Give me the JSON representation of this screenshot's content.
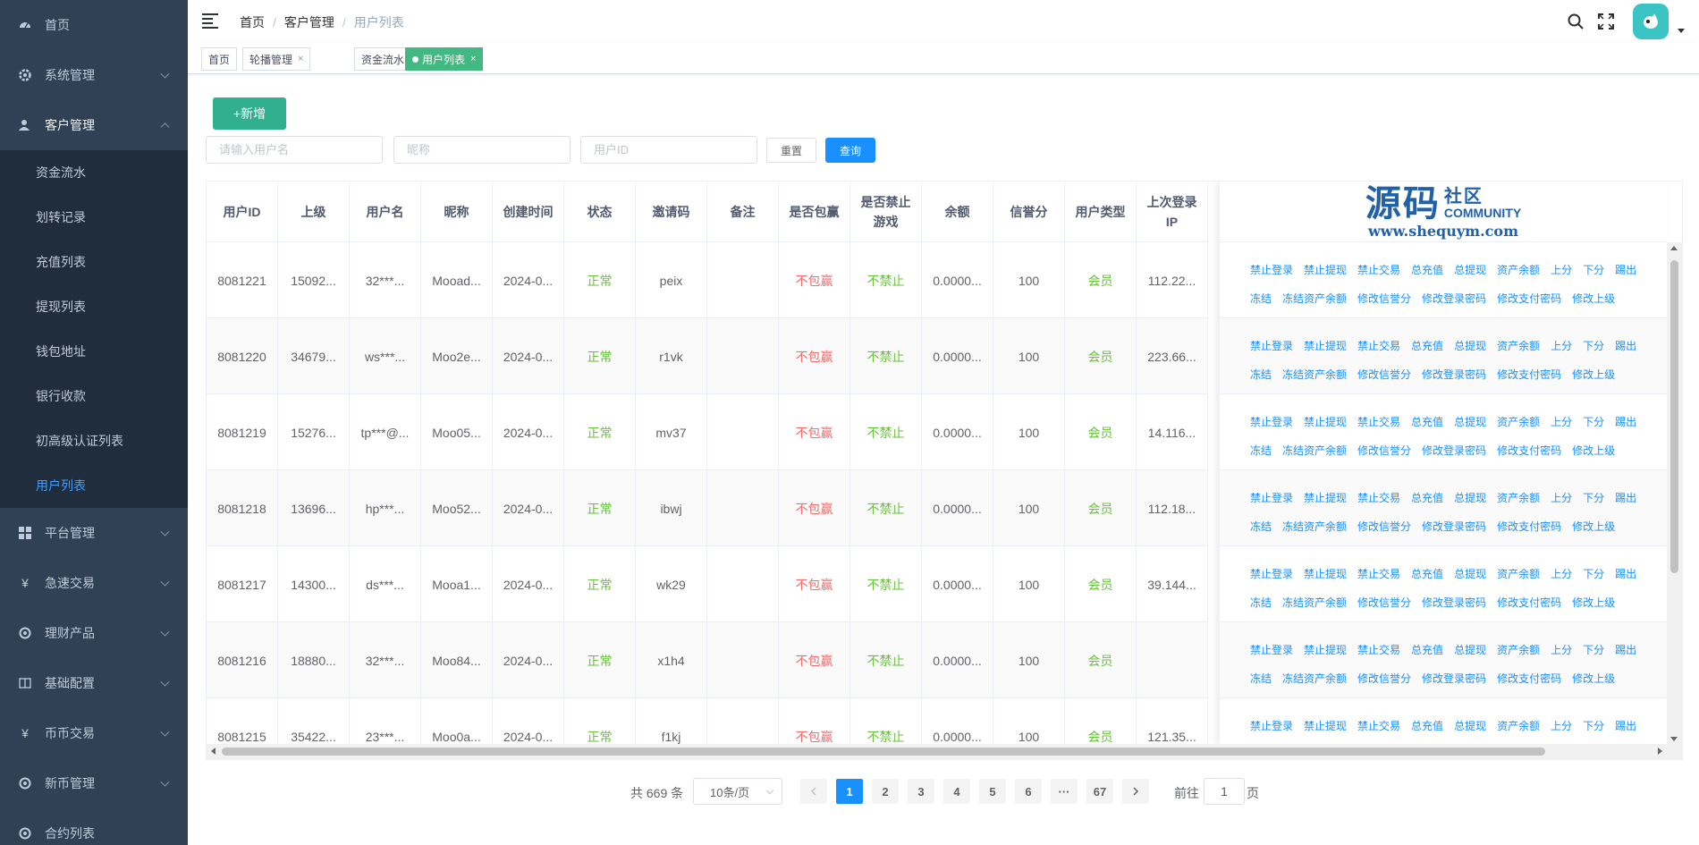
{
  "sidebar": {
    "items": [
      {
        "label": "首页",
        "icon": "dashboard-icon"
      },
      {
        "label": "系统管理",
        "icon": "gear-icon"
      },
      {
        "label": "客户管理",
        "icon": "user-icon"
      }
    ],
    "sub_items": [
      "资金流水",
      "划转记录",
      "充值列表",
      "提现列表",
      "钱包地址",
      "银行收款",
      "初高级认证列表",
      "用户列表"
    ],
    "items_after": [
      {
        "label": "平台管理",
        "icon": "grid-icon"
      },
      {
        "label": "急速交易",
        "icon": "yen-icon"
      },
      {
        "label": "理财产品",
        "icon": "target-icon"
      },
      {
        "label": "基础配置",
        "icon": "book-icon"
      },
      {
        "label": "币币交易",
        "icon": "yen-icon"
      },
      {
        "label": "新币管理",
        "icon": "target-icon"
      },
      {
        "label": "合约列表",
        "icon": "target-icon"
      }
    ]
  },
  "breadcrumb": [
    "首页",
    "客户管理",
    "用户列表"
  ],
  "tags": [
    {
      "label": "首页",
      "closable": false
    },
    {
      "label": "轮播管理",
      "closable": true
    },
    {
      "label": "资金流水",
      "closable": true
    },
    {
      "label": "用户列表",
      "closable": true,
      "active": true
    }
  ],
  "toolbar": {
    "add_label": "+新增",
    "username_placeholder": "请输入用户名",
    "nickname_placeholder": "昵称",
    "userid_placeholder": "用户ID",
    "reset_label": "重置",
    "search_label": "查询"
  },
  "table": {
    "headers": [
      "用户ID",
      "上级",
      "用户名",
      "昵称",
      "创建时间",
      "状态",
      "邀请码",
      "备注",
      "是否包赢",
      "是否禁止游戏",
      "余额",
      "信誉分",
      "用户类型",
      "上次登录IP"
    ],
    "rows": [
      [
        "8081221",
        "15092...",
        "32***...",
        "Mooad...",
        "2024-0...",
        "正常",
        "peix",
        "",
        "不包赢",
        "不禁止",
        "0.0000...",
        "100",
        "会员",
        "112.22..."
      ],
      [
        "8081220",
        "34679...",
        "ws***...",
        "Moo2e...",
        "2024-0...",
        "正常",
        "r1vk",
        "",
        "不包赢",
        "不禁止",
        "0.0000...",
        "100",
        "会员",
        "223.66..."
      ],
      [
        "8081219",
        "15276...",
        "tp***@...",
        "Moo05...",
        "2024-0...",
        "正常",
        "mv37",
        "",
        "不包赢",
        "不禁止",
        "0.0000...",
        "100",
        "会员",
        "14.116..."
      ],
      [
        "8081218",
        "13696...",
        "hp***...",
        "Moo52...",
        "2024-0...",
        "正常",
        "ibwj",
        "",
        "不包赢",
        "不禁止",
        "0.0000...",
        "100",
        "会员",
        "112.18..."
      ],
      [
        "8081217",
        "14300...",
        "ds***...",
        "Mooa1...",
        "2024-0...",
        "正常",
        "wk29",
        "",
        "不包赢",
        "不禁止",
        "0.0000...",
        "100",
        "会员",
        "39.144..."
      ],
      [
        "8081216",
        "18880...",
        "32***...",
        "Moo84...",
        "2024-0...",
        "正常",
        "x1h4",
        "",
        "不包赢",
        "不禁止",
        "0.0000...",
        "100",
        "会员",
        ""
      ],
      [
        "8081215",
        "35422...",
        "23***...",
        "Moo0a...",
        "2024-0...",
        "正常",
        "f1kj",
        "",
        "不包赢",
        "不禁止",
        "0.0000...",
        "100",
        "会员",
        "121.35..."
      ]
    ],
    "ops_line1": [
      "禁止登录",
      "禁止提现",
      "禁止交易",
      "总充值",
      "总提现",
      "资产余额",
      "上分",
      "下分",
      "踢出"
    ],
    "ops_line2": [
      "冻结",
      "冻结资产余额",
      "修改信誉分",
      "修改登录密码",
      "修改支付密码",
      "修改上级"
    ]
  },
  "watermark": {
    "big": "源码",
    "small": "社区",
    "eng": "COMMUNITY",
    "url": "www.shequym.com"
  },
  "pagination": {
    "total": "共 669 条",
    "page_size": "10条/页",
    "pages": [
      "1",
      "2",
      "3",
      "4",
      "5",
      "6",
      "···",
      "67"
    ],
    "current": "1",
    "goto_label": "前往",
    "goto_value": "1",
    "page_suffix": "页"
  },
  "colors": {
    "sidebar_bg": "#304156",
    "active_tag": "#42b983",
    "primary": "#1890ff",
    "add_button": "#30b08f",
    "status_green": "#67c23a",
    "status_red": "#f56c6c"
  }
}
